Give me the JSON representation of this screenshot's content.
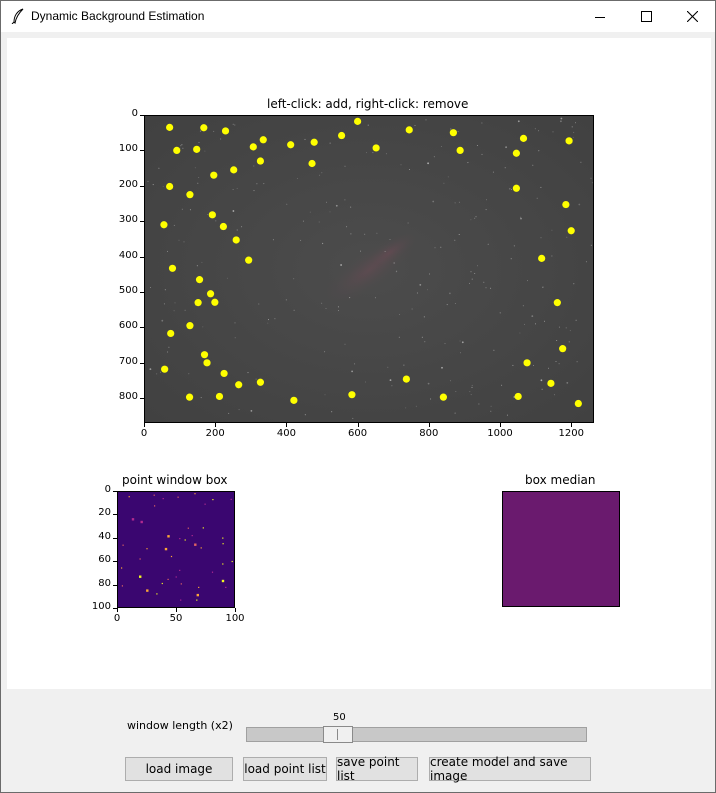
{
  "window": {
    "title": "Dynamic Background Estimation",
    "minimize_label": "—",
    "maximize_label": "☐",
    "close_label": "✕"
  },
  "main_plot": {
    "title": "left-click: add, right-click: remove",
    "x_ticks": [
      "0",
      "200",
      "400",
      "600",
      "800",
      "1000",
      "1200"
    ],
    "y_ticks": [
      "0",
      "100",
      "200",
      "300",
      "400",
      "500",
      "600",
      "700",
      "800"
    ],
    "point_color": "#ffff00"
  },
  "window_plot": {
    "title": "point window box",
    "x_ticks": [
      "0",
      "50",
      "100"
    ],
    "y_ticks": [
      "0",
      "20",
      "40",
      "60",
      "80",
      "100"
    ]
  },
  "median_plot": {
    "title": "box median",
    "color": "#6a1a6e"
  },
  "controls": {
    "window_length_label": "window length (x2)",
    "slider_value": "50",
    "slider_min": 0,
    "slider_max": 500,
    "buttons": {
      "load_image": "load image",
      "load_point_list": "load point list",
      "save_point_list": "save point list",
      "create_model": "create model and save image"
    }
  },
  "sample_points": [
    [
      72,
      35
    ],
    [
      168,
      36
    ],
    [
      229,
      45
    ],
    [
      335,
      70
    ],
    [
      412,
      84
    ],
    [
      472,
      137
    ],
    [
      555,
      58
    ],
    [
      92,
      100
    ],
    [
      148,
      97
    ],
    [
      196,
      170
    ],
    [
      252,
      155
    ],
    [
      307,
      90
    ],
    [
      327,
      130
    ],
    [
      72,
      202
    ],
    [
      129,
      225
    ],
    [
      192,
      282
    ],
    [
      223,
      315
    ],
    [
      259,
      353
    ],
    [
      294,
      410
    ],
    [
      56,
      310
    ],
    [
      80,
      433
    ],
    [
      156,
      465
    ],
    [
      199,
      529
    ],
    [
      187,
      505
    ],
    [
      152,
      530
    ],
    [
      75,
      617
    ],
    [
      129,
      595
    ],
    [
      170,
      677
    ],
    [
      177,
      700
    ],
    [
      225,
      730
    ],
    [
      266,
      762
    ],
    [
      58,
      718
    ],
    [
      128,
      797
    ],
    [
      212,
      795
    ],
    [
      327,
      755
    ],
    [
      421,
      806
    ],
    [
      584,
      790
    ],
    [
      737,
      746
    ],
    [
      841,
      797
    ],
    [
      1051,
      795
    ],
    [
      1143,
      758
    ],
    [
      1220,
      815
    ],
    [
      1194,
      73
    ],
    [
      1066,
      66
    ],
    [
      1046,
      108
    ],
    [
      1046,
      207
    ],
    [
      1185,
      253
    ],
    [
      1200,
      327
    ],
    [
      1117,
      405
    ],
    [
      1161,
      530
    ],
    [
      1176,
      660
    ],
    [
      1076,
      700
    ],
    [
      600,
      18
    ],
    [
      745,
      42
    ],
    [
      869,
      50
    ],
    [
      888,
      100
    ],
    [
      652,
      93
    ],
    [
      478,
      77
    ]
  ]
}
